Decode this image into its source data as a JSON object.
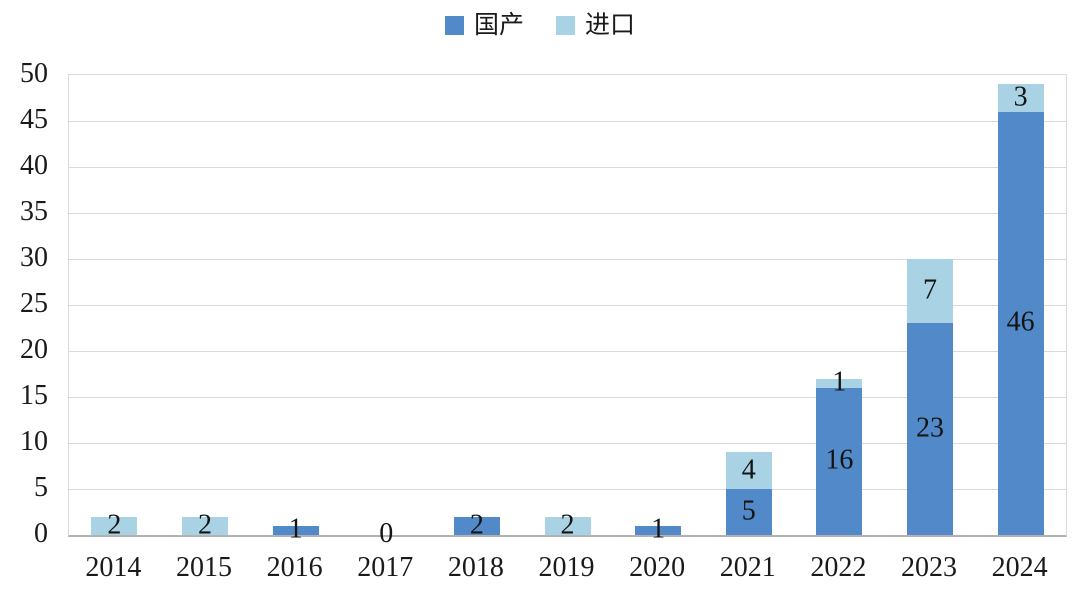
{
  "chart_data": {
    "type": "bar",
    "stacked": true,
    "title": "",
    "categories": [
      "2014",
      "2015",
      "2016",
      "2017",
      "2018",
      "2019",
      "2020",
      "2021",
      "2022",
      "2023",
      "2024"
    ],
    "series": [
      {
        "key": "domestic",
        "name": "国产",
        "color": "#528ac9",
        "values": [
          0,
          0,
          1,
          0,
          2,
          0,
          1,
          5,
          16,
          23,
          46
        ]
      },
      {
        "key": "import",
        "name": "进口",
        "color": "#a9d3e5",
        "values": [
          2,
          2,
          0,
          0,
          0,
          2,
          0,
          4,
          1,
          7,
          3
        ]
      }
    ],
    "totals": [
      2,
      2,
      1,
      0,
      2,
      2,
      1,
      9,
      17,
      30,
      49
    ],
    "ylim": [
      0,
      50
    ],
    "ytick_step": 5,
    "yticks": [
      0,
      5,
      10,
      15,
      20,
      25,
      30,
      35,
      40,
      45,
      50
    ],
    "xlabel": "",
    "ylabel": "",
    "grid": true,
    "legend_position": "top",
    "data_labels": "inside-center",
    "zero_label": "0",
    "zero_label_categories": [
      "2017"
    ]
  },
  "colors": {
    "series_domestic": "#528ac9",
    "series_import": "#a9d3e5",
    "gridline": "#d9d9d9",
    "axis_line": "#b3b3b3",
    "text": "#1a1a1a",
    "background": "#ffffff"
  }
}
